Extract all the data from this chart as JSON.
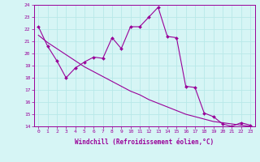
{
  "xlabel": "Windchill (Refroidissement éolien,°C)",
  "background_color": "#d6f5f5",
  "line_color": "#990099",
  "grid_color": "#b8e8e8",
  "hours": [
    0,
    1,
    2,
    3,
    4,
    5,
    6,
    7,
    8,
    9,
    10,
    11,
    12,
    13,
    14,
    15,
    16,
    17,
    18,
    19,
    20,
    21,
    22,
    23
  ],
  "windchill": [
    22.2,
    20.6,
    19.4,
    18.0,
    18.8,
    19.3,
    19.7,
    19.6,
    21.3,
    20.4,
    22.2,
    22.2,
    23.0,
    23.8,
    21.4,
    21.3,
    17.3,
    17.2,
    15.1,
    14.8,
    14.2,
    14.0,
    14.3,
    14.1
  ],
  "smooth_line": [
    21.5,
    20.9,
    20.4,
    19.9,
    19.4,
    18.9,
    18.5,
    18.1,
    17.7,
    17.3,
    16.9,
    16.6,
    16.2,
    15.9,
    15.6,
    15.3,
    15.0,
    14.8,
    14.6,
    14.4,
    14.3,
    14.2,
    14.1,
    14.0
  ],
  "ylim": [
    14,
    24
  ],
  "xlim": [
    -0.5,
    23.5
  ],
  "yticks": [
    14,
    15,
    16,
    17,
    18,
    19,
    20,
    21,
    22,
    23,
    24
  ],
  "xticks": [
    0,
    1,
    2,
    3,
    4,
    5,
    6,
    7,
    8,
    9,
    10,
    11,
    12,
    13,
    14,
    15,
    16,
    17,
    18,
    19,
    20,
    21,
    22,
    23
  ],
  "tick_fontsize": 4.5,
  "xlabel_fontsize": 5.5
}
